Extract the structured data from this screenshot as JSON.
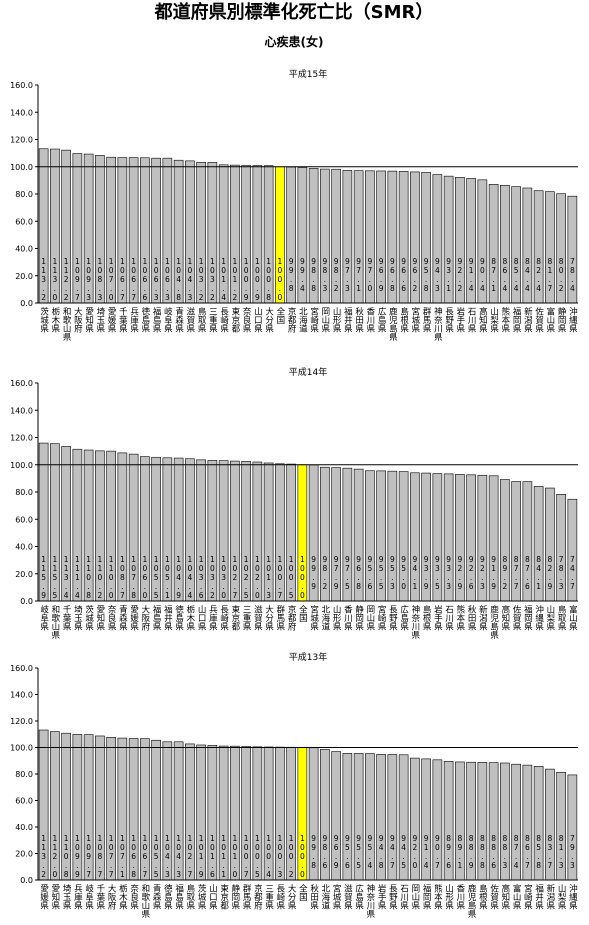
{
  "title": "都道府県別標準化死亡比（SMR）",
  "subtitle": "心疾患(女)",
  "chart_data": [
    {
      "type": "bar",
      "title": "平成15年",
      "categories": [
        "茨城県",
        "栃木県",
        "和歌山県",
        "大阪府",
        "愛知県",
        "埼玉県",
        "愛媛県",
        "千葉県",
        "兵庫県",
        "徳島県",
        "福島県",
        "岐阜県",
        "青森県",
        "滋賀県",
        "鳥取県",
        "三重県",
        "長崎県",
        "東京都",
        "奈良県",
        "山口県",
        "大分県",
        "全国",
        "京都府",
        "北海道",
        "宮崎県",
        "岡山県",
        "山形県",
        "福井県",
        "秋田県",
        "香川県",
        "広島県",
        "鹿児島県",
        "島根県",
        "宮城県",
        "群馬県",
        "神奈川県",
        "長野県",
        "岩手県",
        "石川県",
        "高知県",
        "山梨県",
        "熊本県",
        "福岡県",
        "新潟県",
        "佐賀県",
        "富山県",
        "静岡県",
        "沖縄県"
      ],
      "values": [
        113.2,
        113.0,
        112.2,
        109.7,
        109.3,
        108.3,
        107.0,
        106.7,
        106.7,
        106.6,
        106.3,
        106.3,
        104.8,
        104.3,
        103.2,
        103.2,
        101.4,
        101.2,
        100.9,
        100.9,
        100.8,
        100.0,
        99.8,
        99.4,
        98.8,
        98.3,
        98.2,
        97.3,
        97.1,
        97.0,
        96.9,
        96.8,
        96.6,
        96.2,
        95.8,
        94.3,
        93.1,
        92.2,
        91.4,
        90.4,
        87.1,
        86.4,
        85.4,
        84.4,
        82.4,
        81.7,
        80.2,
        78.4
      ],
      "value_labels": [
        "113.2",
        "113.0",
        "112.2",
        "109.7",
        "109.3",
        "108.3",
        "107.0",
        "106.7",
        "106.7",
        "106.6",
        "106.3",
        "106.3",
        "104.8",
        "104.3",
        "103.2",
        "103.2",
        "101.4",
        "101.2",
        "100.9",
        "100.9",
        "100.8",
        "100.0",
        "99.8",
        "99.4",
        "98.8",
        "98.3",
        "98.2",
        "97.3",
        "97.1",
        "97.0",
        "96.9",
        "96.8",
        "96.6",
        "96.2",
        "95.8",
        "94.3",
        "93.1",
        "92.2",
        "91.4",
        "90.4",
        "87.1",
        "86.4",
        "85.4",
        "84.4",
        "82.4",
        "81.7",
        "80.2",
        "78.4"
      ],
      "color": "#c0c0c0",
      "highlight": {
        "category": "全国",
        "color": "#ffff00"
      },
      "reference_line": 100,
      "ylim": [
        0,
        160
      ],
      "yticks": [
        {
          "value": 0,
          "label": "0.0"
        },
        {
          "value": 20,
          "label": "20.0"
        },
        {
          "value": 40,
          "label": "40.0"
        },
        {
          "value": 60,
          "label": "60.0"
        },
        {
          "value": 80,
          "label": "80.0"
        },
        {
          "value": 100,
          "label": "100.0"
        },
        {
          "value": 120,
          "label": "120.0"
        },
        {
          "value": 140,
          "label": "140.0"
        },
        {
          "value": 160,
          "label": "160.0"
        }
      ]
    },
    {
      "type": "bar",
      "title": "平成14年",
      "categories": [
        "岐阜県",
        "和歌山県",
        "千葉県",
        "埼玉県",
        "茨城県",
        "愛知県",
        "奈良県",
        "青森県",
        "愛媛県",
        "大阪府",
        "福島県",
        "福井県",
        "徳島県",
        "栃木県",
        "山口県",
        "兵庫県",
        "長崎県",
        "東京都",
        "三重県",
        "滋賀県",
        "大分県",
        "群馬県",
        "京都府",
        "全国",
        "宮城県",
        "北海道",
        "山形県",
        "香川県",
        "静岡県",
        "岡山県",
        "宮崎県",
        "長野県",
        "広島県",
        "神奈川県",
        "島根県",
        "岩手県",
        "石川県",
        "熊本県",
        "秋田県",
        "新潟県",
        "鹿児島県",
        "高知県",
        "佐賀県",
        "福岡県",
        "沖縄県",
        "山梨県",
        "鳥取県",
        "富山県"
      ],
      "values": [
        115.9,
        115.5,
        113.4,
        111.4,
        110.8,
        110.2,
        110.0,
        108.7,
        107.8,
        106.0,
        105.5,
        105.1,
        104.9,
        104.4,
        103.6,
        103.2,
        103.0,
        102.7,
        102.5,
        102.0,
        101.3,
        100.7,
        100.5,
        100.0,
        99.9,
        98.2,
        97.9,
        97.5,
        96.8,
        95.6,
        95.5,
        95.3,
        95.0,
        94.1,
        93.9,
        93.5,
        93.3,
        92.9,
        92.6,
        92.3,
        91.9,
        89.2,
        87.7,
        87.6,
        84.1,
        82.9,
        78.3,
        74.7
      ],
      "value_labels": [
        "115.9",
        "115.5",
        "113.4",
        "111.4",
        "110.8",
        "110.2",
        "110.0",
        "108.7",
        "107.8",
        "106.0",
        "105.5",
        "105.1",
        "104.9",
        "104.4",
        "103.6",
        "103.2",
        "103.0",
        "102.7",
        "102.5",
        "102.0",
        "101.3",
        "100.7",
        "100.5",
        "100.0",
        "99.9",
        "98.2",
        "97.9",
        "97.5",
        "96.8",
        "95.6",
        "95.5",
        "95.3",
        "95.0",
        "94.1",
        "93.9",
        "93.5",
        "93.3",
        "92.9",
        "92.6",
        "92.3",
        "91.9",
        "89.2",
        "87.7",
        "87.6",
        "84.1",
        "82.9",
        "78.3",
        "74.7"
      ],
      "color": "#c0c0c0",
      "highlight": {
        "category": "全国",
        "color": "#ffff00"
      },
      "reference_line": 100,
      "ylim": [
        0,
        160
      ],
      "yticks": [
        {
          "value": 0,
          "label": "0.0"
        },
        {
          "value": 20,
          "label": "20.0"
        },
        {
          "value": 40,
          "label": "40.0"
        },
        {
          "value": 60,
          "label": "60.0"
        },
        {
          "value": 80,
          "label": "80.0"
        },
        {
          "value": 100,
          "label": "100.0"
        },
        {
          "value": 120,
          "label": "120.0"
        },
        {
          "value": 140,
          "label": "140.0"
        },
        {
          "value": 160,
          "label": "160.0"
        }
      ]
    },
    {
      "type": "bar",
      "title": "平成13年",
      "categories": [
        "愛媛県",
        "愛知県",
        "埼玉県",
        "兵庫県",
        "岐阜県",
        "千葉県",
        "大阪府",
        "栃木県",
        "奈良県",
        "和歌山県",
        "青森県",
        "徳島県",
        "福島県",
        "鳥取県",
        "茨城県",
        "山口県",
        "東京都",
        "静岡県",
        "群馬県",
        "京都府",
        "三重県",
        "長崎県",
        "大分県",
        "全国",
        "秋田県",
        "北海道",
        "宮城県",
        "滋賀県",
        "広島県",
        "神奈川県",
        "岩手県",
        "長野県",
        "石川県",
        "岡山県",
        "福岡県",
        "熊本県",
        "山形県",
        "香川県",
        "鹿児島県",
        "島根県",
        "佐賀県",
        "高知県",
        "富山県",
        "宮崎県",
        "福井県",
        "新潟県",
        "山梨県",
        "沖縄県"
      ],
      "values": [
        113.2,
        112.0,
        110.8,
        109.9,
        109.7,
        108.7,
        107.7,
        107.1,
        106.8,
        106.7,
        105.5,
        104.3,
        104.3,
        102.7,
        101.9,
        101.6,
        101.1,
        101.0,
        100.7,
        100.5,
        100.4,
        100.3,
        100.2,
        100.0,
        99.8,
        98.6,
        96.9,
        95.6,
        95.5,
        95.4,
        94.8,
        94.7,
        94.5,
        92.0,
        91.4,
        90.7,
        89.6,
        89.1,
        88.9,
        88.8,
        88.6,
        88.3,
        87.4,
        86.7,
        85.8,
        83.7,
        81.3,
        79.3
      ],
      "value_labels": [
        "113.2",
        "112.0",
        "110.8",
        "109.9",
        "109.7",
        "108.7",
        "107.7",
        "107.1",
        "106.8",
        "106.7",
        "105.5",
        "104.3",
        "104.3",
        "102.7",
        "101.9",
        "101.6",
        "101.1",
        "101.0",
        "100.7",
        "100.5",
        "100.4",
        "100.3",
        "100.2",
        "100.0",
        "99.8",
        "98.6",
        "96.9",
        "95.6",
        "95.5",
        "95.4",
        "94.8",
        "94.7",
        "94.5",
        "92.0",
        "91.4",
        "90.7",
        "89.6",
        "89.1",
        "88.9",
        "88.8",
        "88.6",
        "88.3",
        "87.4",
        "86.7",
        "85.8",
        "83.7",
        "81.3",
        "79.3"
      ],
      "color": "#c0c0c0",
      "highlight": {
        "category": "全国",
        "color": "#ffff00"
      },
      "reference_line": 100,
      "ylim": [
        0,
        160
      ],
      "yticks": [
        {
          "value": 0,
          "label": "0.0"
        },
        {
          "value": 20,
          "label": "20.0"
        },
        {
          "value": 40,
          "label": "40.0"
        },
        {
          "value": 60,
          "label": "60.0"
        },
        {
          "value": 80,
          "label": "80.0"
        },
        {
          "value": 100,
          "label": "100.0"
        },
        {
          "value": 120,
          "label": "120.0"
        },
        {
          "value": 140,
          "label": "140.0"
        },
        {
          "value": 160,
          "label": "160.0"
        }
      ]
    }
  ]
}
